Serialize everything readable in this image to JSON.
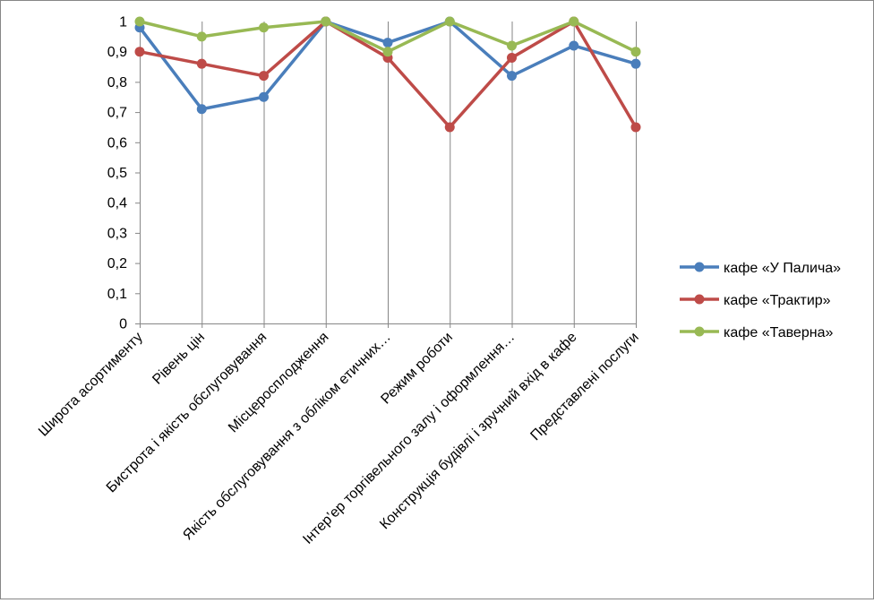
{
  "chart_data": {
    "type": "line",
    "title": "",
    "xlabel": "",
    "ylabel": "",
    "ylim": [
      0,
      1
    ],
    "y_ticks": [
      "0",
      "0,1",
      "0,2",
      "0,3",
      "0,4",
      "0,5",
      "0,6",
      "0,7",
      "0,8",
      "0,9",
      "1"
    ],
    "grid": "vertical",
    "legend_position": "right",
    "categories": [
      "Широта асортименту",
      "Рівень цін",
      "Бистрота і якість обслуговування",
      "Місцеросплодження",
      "Якість обслуговування з обліком етичних…",
      "Режим роботи",
      "Інтер’ер торгівельного залу і оформлення…",
      "Конструкція будівлі і зручний вхід в кафе",
      "Представлені послуги"
    ],
    "series": [
      {
        "name": "кафе «У Палича»",
        "color": "#4a7ebb",
        "values": [
          0.98,
          0.71,
          0.75,
          1.0,
          0.93,
          1.0,
          0.82,
          0.92,
          0.86
        ]
      },
      {
        "name": "кафе «Трактир»",
        "color": "#be4b48",
        "values": [
          0.9,
          0.86,
          0.82,
          1.0,
          0.88,
          0.65,
          0.88,
          1.0,
          0.65
        ]
      },
      {
        "name": "кафе «Таверна»",
        "color": "#98b954",
        "values": [
          1.0,
          0.95,
          0.98,
          1.0,
          0.9,
          1.0,
          0.92,
          1.0,
          0.9
        ]
      }
    ]
  }
}
